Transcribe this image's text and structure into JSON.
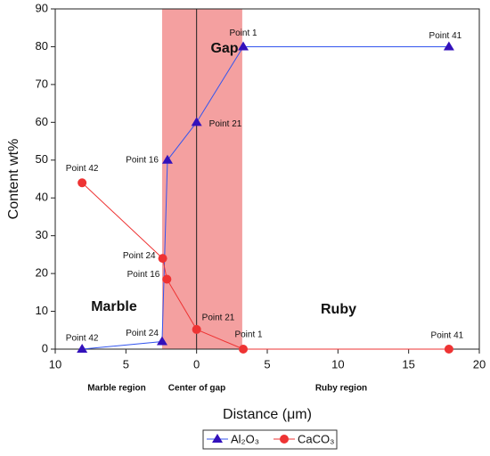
{
  "chart_data": {
    "type": "line",
    "xlabel": "Distance (μm)",
    "ylabel": "Content wt%",
    "xlim": [
      -10,
      20
    ],
    "ylim": [
      0,
      90
    ],
    "xticks": [
      {
        "value": -10,
        "label": "10"
      },
      {
        "value": -5,
        "label": "5"
      },
      0,
      5,
      10,
      15,
      20
    ],
    "yticks": [
      0,
      10,
      20,
      30,
      40,
      50,
      60,
      70,
      80,
      90
    ],
    "shaded_region": [
      -2.44,
      3.23
    ],
    "shade_color": "#f4a0a0",
    "vline_x": 0,
    "annotations": [
      "Gap",
      "Marble",
      "Ruby"
    ],
    "region_labels": [
      "Marble region",
      "Center of gap",
      "Ruby region"
    ],
    "series": [
      {
        "name": "Al₂O₃",
        "color": "#3355ee",
        "marker_color": "#3311bb",
        "marker": "triangle",
        "x": [
          -8.1,
          -2.44,
          -2.06,
          0,
          3.3,
          17.85
        ],
        "values": [
          0,
          2,
          50,
          60,
          80,
          80
        ],
        "point_labels": [
          "Point 42",
          "Point 24",
          "Point 16",
          "Point 21",
          "Point 1",
          "Point 41"
        ]
      },
      {
        "name": "CaCO₃",
        "color": "#ee3333",
        "marker_color": "#ee3333",
        "marker": "circle",
        "x": [
          -8.1,
          -2.4,
          -2.1,
          0,
          3.3,
          17.85
        ],
        "values": [
          44,
          24,
          18.5,
          5.2,
          0,
          0
        ],
        "point_labels": [
          "Point 42",
          "Point 24",
          "Point 16",
          "Point 21",
          "Point 1",
          "Point 41"
        ]
      }
    ]
  }
}
